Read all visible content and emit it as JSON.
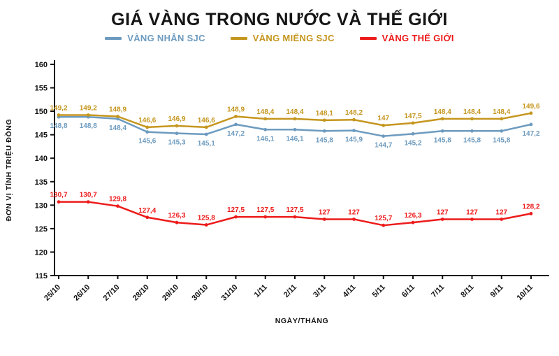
{
  "title": "GIÁ VÀNG TRONG NƯỚC VÀ THẾ GIỚI",
  "axis": {
    "ylabel": "ĐƠN VỊ TÍNH TRIỆU ĐỒNG",
    "xlabel": "NGÀY/THÁNG"
  },
  "chart_data": {
    "type": "line",
    "title": "GIÁ VÀNG TRONG NƯỚC VÀ THẾ GIỚI",
    "xlabel": "NGÀY/THÁNG",
    "ylabel": "ĐƠN VỊ TÍNH TRIỆU ĐỒNG",
    "ylim": [
      115,
      160
    ],
    "yticks": [
      115,
      120,
      125,
      130,
      135,
      140,
      145,
      150,
      155,
      160
    ],
    "grid": false,
    "legend_position": "top",
    "categories": [
      "25/10",
      "26/10",
      "27/10",
      "28/10",
      "29/10",
      "30/10",
      "31/10",
      "1/11",
      "2/11",
      "3/11",
      "4/11",
      "5/11",
      "6/11",
      "7/11",
      "8/11",
      "9/11",
      "10/11"
    ],
    "series": [
      {
        "name": "VÀNG NHẪN SJC",
        "color": "#6d9bbf",
        "label_position": "below",
        "values": [
          148.8,
          148.8,
          148.4,
          145.6,
          145.3,
          145.1,
          147.2,
          146.1,
          146.1,
          145.8,
          145.9,
          144.7,
          145.2,
          145.8,
          145.8,
          145.8,
          147.2
        ]
      },
      {
        "name": "VÀNG MIẾNG SJC",
        "color": "#c5961e",
        "label_position": "above",
        "values": [
          149.2,
          149.2,
          148.9,
          146.6,
          146.9,
          146.6,
          148.9,
          148.4,
          148.4,
          148.1,
          148.2,
          147,
          147.5,
          148.4,
          148.4,
          148.4,
          149.6
        ]
      },
      {
        "name": "VÀNG THẾ GIỚI",
        "color": "#ed1b1b",
        "label_position": "above",
        "values": [
          130.7,
          130.7,
          129.8,
          127.4,
          126.3,
          125.8,
          127.5,
          127.5,
          127.5,
          127,
          127,
          125.7,
          126.3,
          127,
          127,
          127,
          128.2
        ]
      }
    ]
  }
}
